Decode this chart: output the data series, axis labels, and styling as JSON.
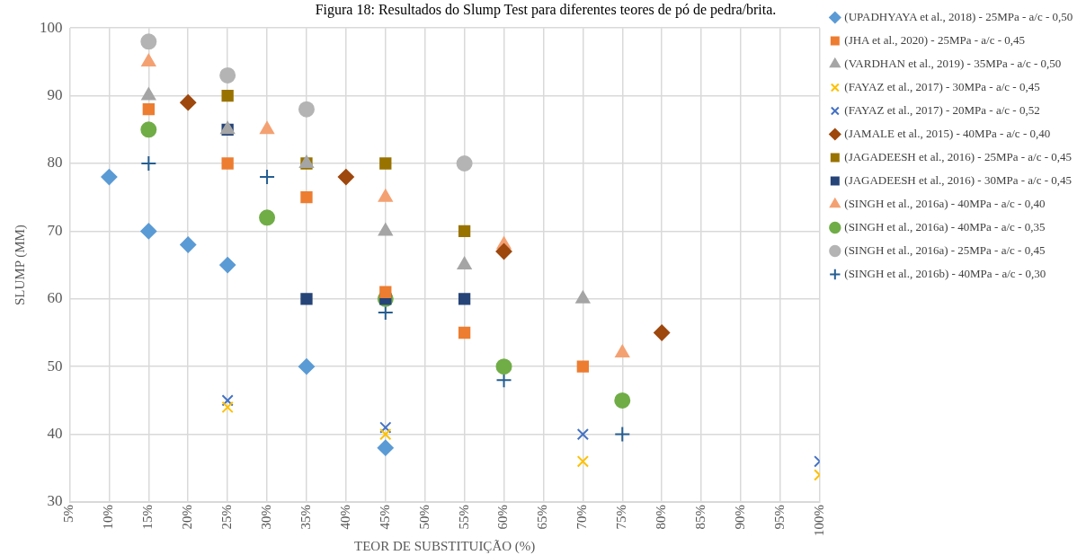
{
  "chart_data": {
    "type": "scatter",
    "title": "Figura 18: Resultados do Slump Test para diferentes teores de pó de pedra/brita.",
    "xlabel": "TEOR DE SUBSTITUIÇÃO (%)",
    "ylabel": "SLUMP (MM)",
    "xlim": [
      5,
      100
    ],
    "xticks": [
      {
        "value": 5,
        "label": "5%"
      },
      {
        "value": 10,
        "label": "10%"
      },
      {
        "value": 15,
        "label": "15%"
      },
      {
        "value": 20,
        "label": "20%"
      },
      {
        "value": 25,
        "label": "25%"
      },
      {
        "value": 30,
        "label": "30%"
      },
      {
        "value": 35,
        "label": "35%"
      },
      {
        "value": 40,
        "label": "40%"
      },
      {
        "value": 45,
        "label": "45%"
      },
      {
        "value": 50,
        "label": "50%"
      },
      {
        "value": 55,
        "label": "55%"
      },
      {
        "value": 60,
        "label": "60%"
      },
      {
        "value": 65,
        "label": "65%"
      },
      {
        "value": 70,
        "label": "70%"
      },
      {
        "value": 75,
        "label": "75%"
      },
      {
        "value": 80,
        "label": "80%"
      },
      {
        "value": 85,
        "label": "85%"
      },
      {
        "value": 90,
        "label": "90%"
      },
      {
        "value": 95,
        "label": "95%"
      },
      {
        "value": 100,
        "label": "100%"
      }
    ],
    "ylim": [
      30,
      100
    ],
    "yticks": [
      30,
      40,
      50,
      60,
      70,
      80,
      90,
      100
    ],
    "grid": true,
    "legend": "right",
    "series": [
      {
        "name": "(UPADHYAYA et al., 2018) - 25MPa - a/c - 0,50",
        "color": "#5b9bd5",
        "marker": "diamond",
        "x": [
          10,
          15,
          20,
          25,
          35,
          45
        ],
        "values": [
          78,
          70,
          68,
          65,
          50,
          38
        ]
      },
      {
        "name": "(JHA et al., 2020) - 25MPa - a/c - 0,45",
        "color": "#ed7d31",
        "marker": "square",
        "x": [
          15,
          25,
          35,
          45,
          55,
          70
        ],
        "values": [
          88,
          80,
          75,
          61,
          55,
          50
        ]
      },
      {
        "name": "(VARDHAN et al., 2019) - 35MPa - a/c - 0,50",
        "color": "#a5a5a5",
        "marker": "triangle",
        "x": [
          15,
          25,
          35,
          45,
          55,
          70
        ],
        "values": [
          90,
          85,
          80,
          70,
          65,
          60
        ]
      },
      {
        "name": "(FAYAZ et al., 2017) - 30MPa - a/c - 0,45",
        "color": "#ffc000",
        "marker": "cross",
        "x": [
          25,
          45,
          70,
          100
        ],
        "values": [
          44,
          40,
          36,
          34
        ]
      },
      {
        "name": "(FAYAZ et al., 2017) - 20MPa - a/c - 0,52",
        "color": "#4472c4",
        "marker": "cross",
        "x": [
          25,
          45,
          70,
          100
        ],
        "values": [
          45,
          41,
          40,
          36
        ]
      },
      {
        "name": "(JAMALE et al., 2015) - 40MPa - a/c - 0,40",
        "color": "#9e480e",
        "marker": "diamond",
        "x": [
          20,
          40,
          60,
          80
        ],
        "values": [
          89,
          78,
          67,
          55
        ]
      },
      {
        "name": "(JAGADEESH et al., 2016) - 25MPa - a/c - 0,45",
        "color": "#997300",
        "marker": "square",
        "x": [
          25,
          35,
          45,
          55
        ],
        "values": [
          90,
          80,
          80,
          70
        ]
      },
      {
        "name": "(JAGADEESH et al., 2016) - 30MPa - a/c - 0,45",
        "color": "#264478",
        "marker": "square",
        "x": [
          25,
          35,
          45,
          55
        ],
        "values": [
          85,
          60,
          60,
          60
        ]
      },
      {
        "name": "(SINGH et al., 2016a) - 40MPa - a/c - 0,40",
        "color": "#f4a172",
        "marker": "triangle",
        "x": [
          15,
          30,
          45,
          60,
          75
        ],
        "values": [
          95,
          85,
          75,
          68,
          52
        ]
      },
      {
        "name": "(SINGH et al., 2016a) - 40MPa - a/c - 0,35",
        "color": "#70ad47",
        "marker": "circle",
        "x": [
          15,
          30,
          45,
          60,
          75
        ],
        "values": [
          85,
          72,
          60,
          50,
          45
        ]
      },
      {
        "name": "(SINGH et al., 2016a) - 25MPa - a/c - 0,45",
        "color": "#b4b4b4",
        "marker": "circle",
        "x": [
          15,
          25,
          35,
          55
        ],
        "values": [
          98,
          93,
          88,
          80
        ]
      },
      {
        "name": "(SINGH et al., 2016b) - 40MPa - a/c - 0,30",
        "color": "#255e91",
        "marker": "plus",
        "x": [
          15,
          30,
          45,
          60,
          75
        ],
        "values": [
          80,
          78,
          58,
          48,
          40
        ]
      }
    ]
  }
}
